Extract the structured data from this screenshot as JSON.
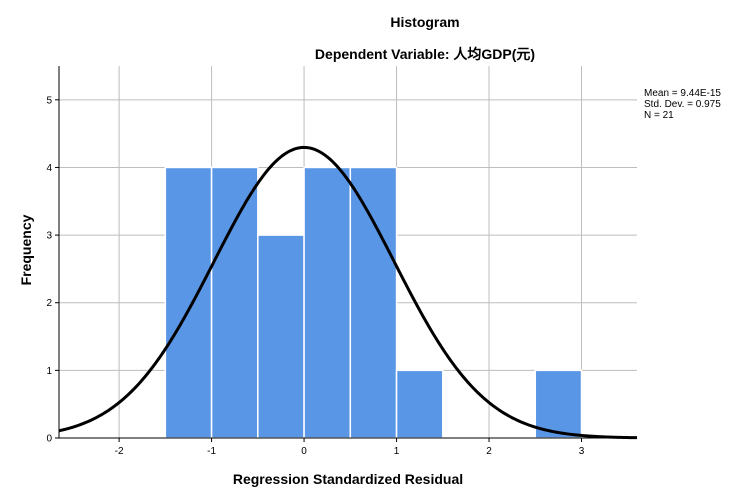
{
  "chart_data": {
    "type": "bar",
    "title": "Histogram",
    "subtitle": "Dependent Variable: 人均GDP(元)",
    "xlabel": "Regression Standardized Residual",
    "ylabel": "Frequency",
    "xlim": [
      -2.65,
      3.6
    ],
    "ylim": [
      0,
      5.5
    ],
    "x_ticks": [
      -2,
      -1,
      0,
      1,
      2,
      3
    ],
    "y_ticks": [
      0,
      1,
      2,
      3,
      4,
      5
    ],
    "grid": true,
    "bins": [
      {
        "start": -1.5,
        "end": -1.0,
        "count": 4
      },
      {
        "start": -1.0,
        "end": -0.5,
        "count": 4
      },
      {
        "start": -0.5,
        "end": 0.0,
        "count": 3
      },
      {
        "start": 0.0,
        "end": 0.5,
        "count": 4
      },
      {
        "start": 0.5,
        "end": 1.0,
        "count": 4
      },
      {
        "start": 1.0,
        "end": 1.5,
        "count": 1
      },
      {
        "start": 1.5,
        "end": 2.0,
        "count": 0
      },
      {
        "start": 2.0,
        "end": 2.5,
        "count": 0
      },
      {
        "start": 2.5,
        "end": 3.0,
        "count": 1
      }
    ],
    "normal_curve": {
      "mean": 0.0,
      "std": 0.975,
      "n": 21,
      "bin_width": 0.5
    },
    "stats": [
      "Mean = 9.44E-15",
      "Std. Dev. = 0.975",
      "N = 21"
    ],
    "colors": {
      "bar": "#5a96e6",
      "bar_edge": "#ffffff",
      "curve": "#000000",
      "grid": "#bdbdbd"
    }
  }
}
